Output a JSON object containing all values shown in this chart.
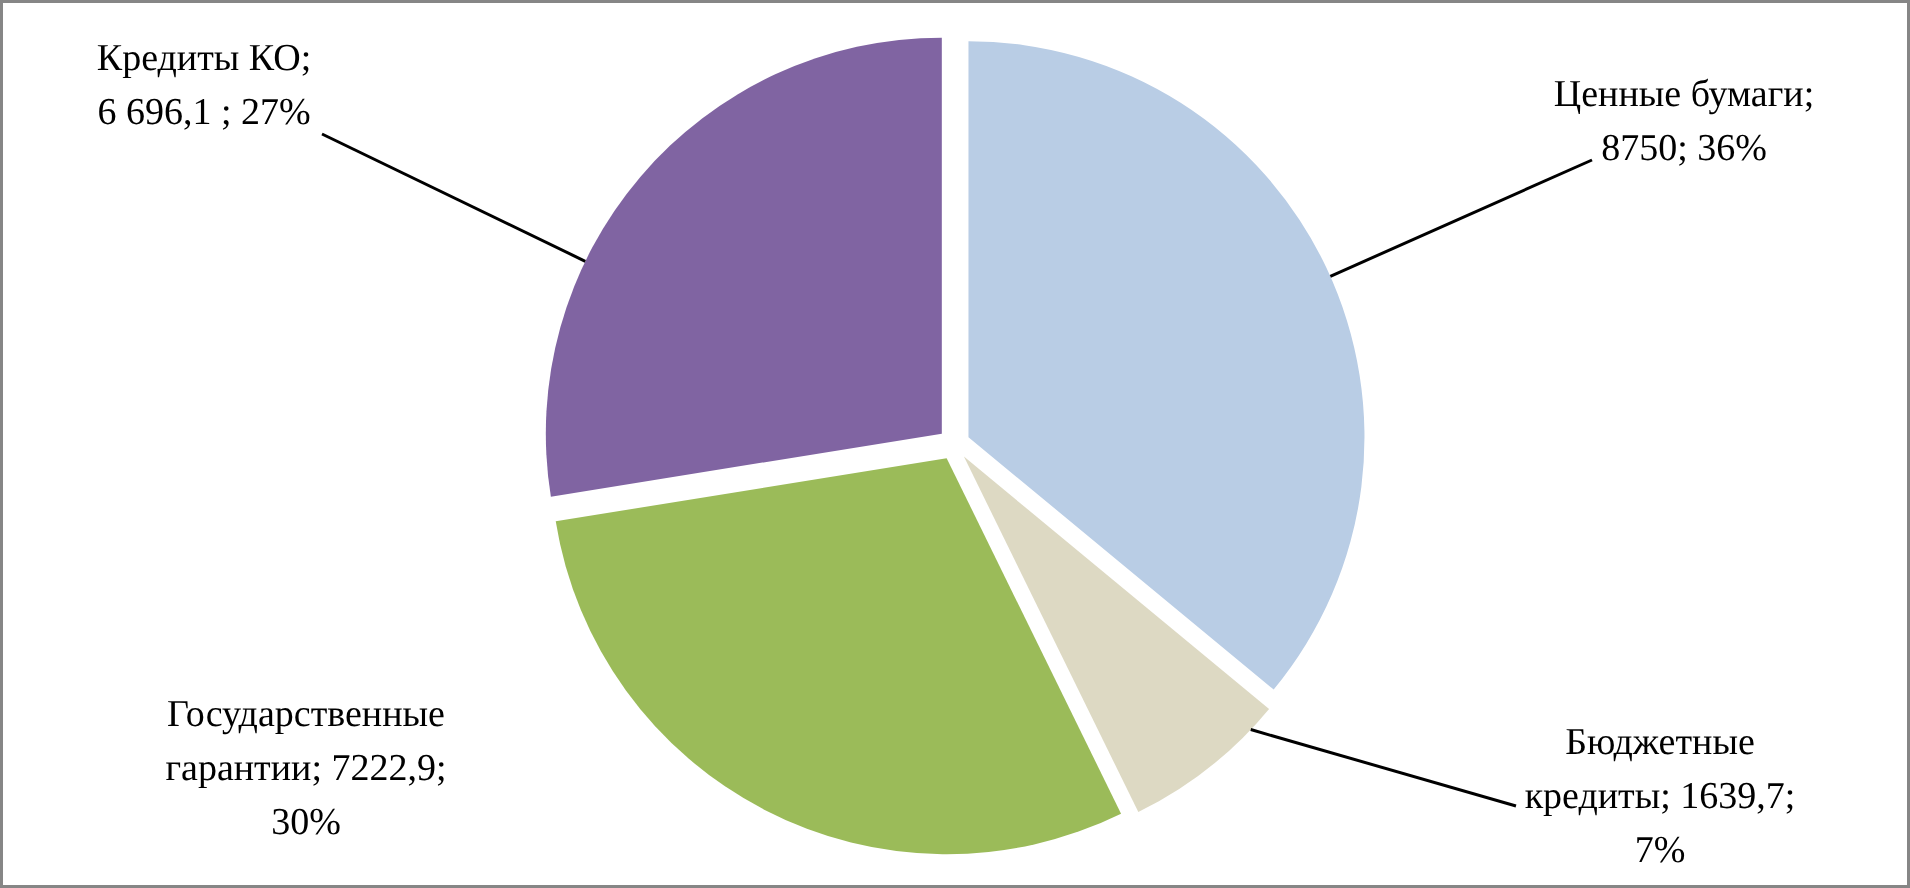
{
  "chart_data": {
    "type": "pie",
    "categories": [
      "Ценные бумаги",
      "Бюджетные кредиты",
      "Государственные гарантии",
      "Кредиты КО"
    ],
    "values": [
      8750,
      1639.7,
      7222.9,
      6696.1
    ],
    "colors": [
      "#b9cde5",
      "#ddd9c3",
      "#9bbb59",
      "#8064a2"
    ],
    "value_labels": [
      "; 8750; 36%",
      "; 1639,7; 7%",
      "; 7222,9; 30%",
      "; 6 696,1 ; 27%"
    ]
  }
}
